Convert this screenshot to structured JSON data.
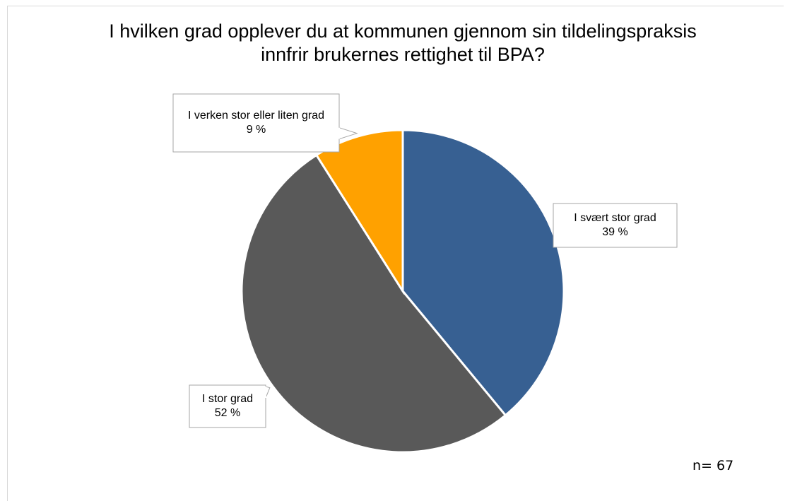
{
  "chart_data": {
    "type": "pie",
    "title": "I hvilken grad opplever du at kommunen gjennom sin tildelingspraksis innfrir brukernes rettighet til BPA?",
    "categories": [
      "I svært stor grad",
      "I stor grad",
      "I verken stor eller liten grad"
    ],
    "values": [
      39,
      52,
      9
    ],
    "value_labels": [
      "39 %",
      "52 %",
      "9 %"
    ],
    "colors": [
      "#376092",
      "#595959",
      "#ffa100"
    ],
    "annotation": "n= 67"
  }
}
